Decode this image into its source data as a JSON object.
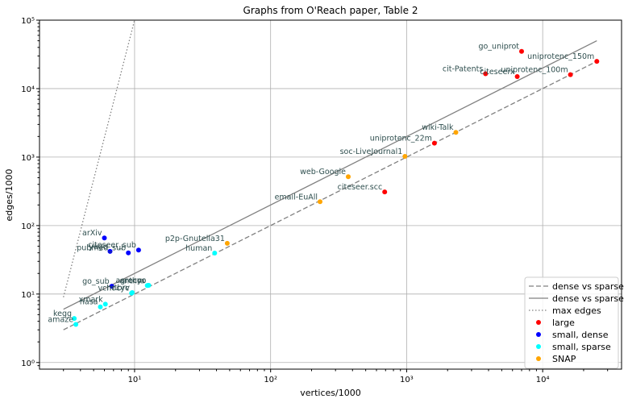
{
  "chart_data": {
    "type": "scatter",
    "title": "Graphs from O'Reach paper, Table 2",
    "xlabel": "vertices/1000",
    "ylabel": "edges/1000",
    "xscale": "log",
    "yscale": "log",
    "xlim": [
      2,
      38000
    ],
    "ylim": [
      0.8,
      100000
    ],
    "x_ticks": [
      {
        "value": 10,
        "label": "10¹"
      },
      {
        "value": 100,
        "label": "10²"
      },
      {
        "value": 1000,
        "label": "10³"
      },
      {
        "value": 10000,
        "label": "10⁴"
      }
    ],
    "y_ticks": [
      {
        "value": 1,
        "label": "10⁰"
      },
      {
        "value": 10,
        "label": "10¹"
      },
      {
        "value": 100,
        "label": "10²"
      },
      {
        "value": 1000,
        "label": "10³"
      },
      {
        "value": 10000,
        "label": "10⁴"
      },
      {
        "value": 100000,
        "label": "10⁵"
      }
    ],
    "grid": true,
    "legend_position": "lower-right",
    "lines": [
      {
        "name": "dense vs sparse",
        "style": "dashed",
        "color": "#808080",
        "points": [
          [
            3,
            3
          ],
          [
            25000,
            25000
          ]
        ]
      },
      {
        "name": "dense vs sparse",
        "style": "solid",
        "color": "#808080",
        "points": [
          [
            3,
            6
          ],
          [
            25000,
            50000
          ]
        ]
      },
      {
        "name": "max edges",
        "style": "dotted",
        "color": "#808080",
        "points": [
          [
            3,
            9
          ],
          [
            10,
            100000
          ]
        ]
      }
    ],
    "series": [
      {
        "name": "large",
        "color": "#ff0000",
        "points": [
          {
            "label": "go_uniprot",
            "x": 7000,
            "y": 35000
          },
          {
            "label": "uniprotenc_150m",
            "x": 25000,
            "y": 25000
          },
          {
            "label": "cit-Patents",
            "x": 3800,
            "y": 16500
          },
          {
            "label": "citeseerx",
            "x": 6500,
            "y": 15000
          },
          {
            "label": "uniprotenc_100m",
            "x": 16000,
            "y": 16000
          },
          {
            "label": "uniprotenc_22m",
            "x": 1600,
            "y": 1600
          },
          {
            "label": "citeseer.scc",
            "x": 690,
            "y": 310
          }
        ]
      },
      {
        "name": "small, dense",
        "color": "#0000ff",
        "points": [
          {
            "label": "arXiv",
            "x": 6,
            "y": 66
          },
          {
            "label": "yago",
            "x": 6.6,
            "y": 42
          },
          {
            "label": "pubmed_sub",
            "x": 9,
            "y": 40
          },
          {
            "label": "citeseer_sub",
            "x": 10.7,
            "y": 44
          },
          {
            "label": "go_sub",
            "x": 6.8,
            "y": 13
          }
        ]
      },
      {
        "name": "small, sparse",
        "color": "#00ffff",
        "points": [
          {
            "label": "kegg",
            "x": 3.6,
            "y": 4.4
          },
          {
            "label": "amaze",
            "x": 3.7,
            "y": 3.6
          },
          {
            "label": "xmark",
            "x": 6.1,
            "y": 7.1
          },
          {
            "label": "nasa",
            "x": 5.6,
            "y": 6.5
          },
          {
            "label": "vchocyc",
            "x": 9.5,
            "y": 10.3
          },
          {
            "label": "mtbrv",
            "x": 9.6,
            "y": 10.5
          },
          {
            "label": "anthra",
            "x": 12.4,
            "y": 13.3
          },
          {
            "label": "agrocyc",
            "x": 12.6,
            "y": 13.4
          },
          {
            "label": "ecoo",
            "x": 12.7,
            "y": 13.4
          },
          {
            "label": "human",
            "x": 38.8,
            "y": 39.6
          }
        ]
      },
      {
        "name": "SNAP",
        "color": "#ffa500",
        "points": [
          {
            "label": "p2p-Gnutella31",
            "x": 48,
            "y": 55
          },
          {
            "label": "email-EuAll",
            "x": 231,
            "y": 223
          },
          {
            "label": "web-Google",
            "x": 372,
            "y": 517
          },
          {
            "label": "soc-LiveJournal1",
            "x": 971,
            "y": 1024
          },
          {
            "label": "wiki-Talk",
            "x": 2300,
            "y": 2300
          }
        ]
      }
    ]
  }
}
